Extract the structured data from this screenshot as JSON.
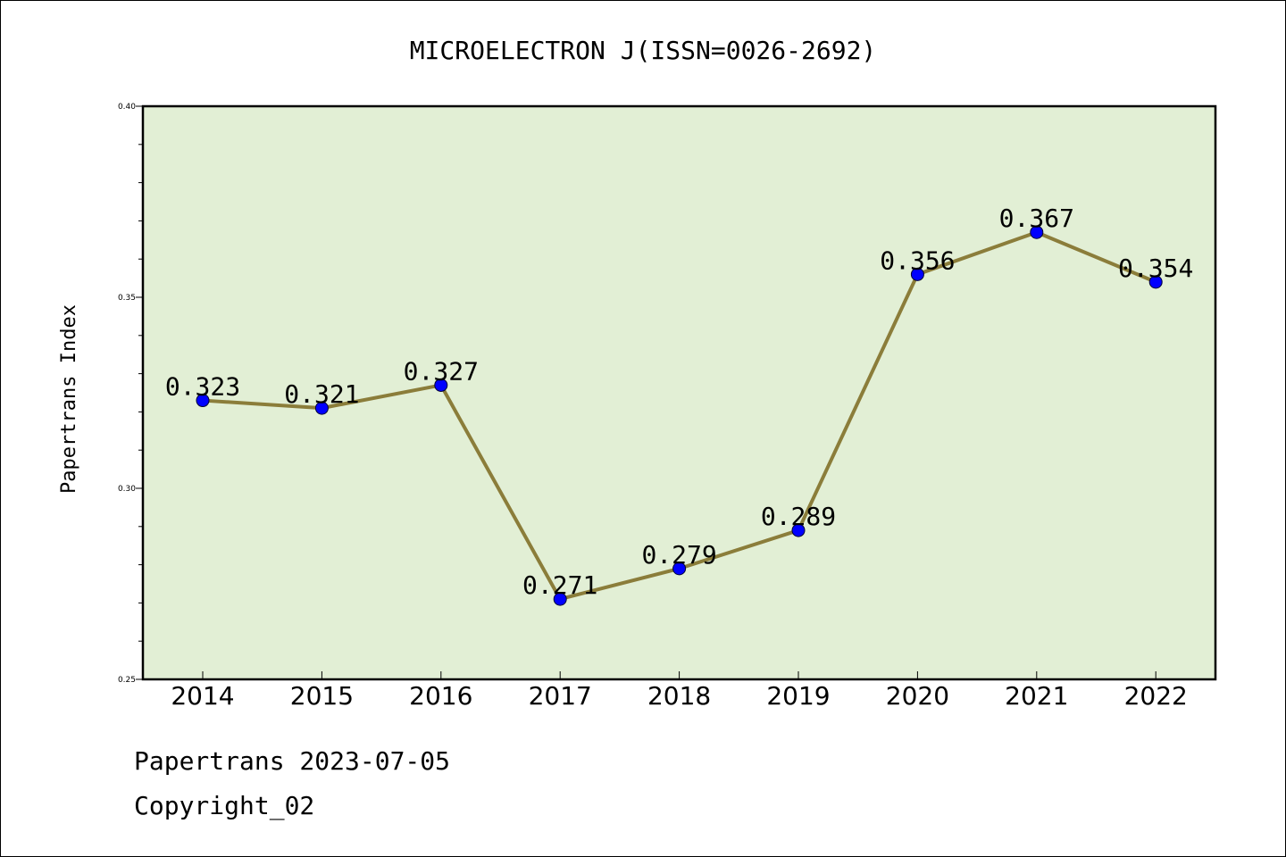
{
  "chart_data": {
    "type": "line",
    "title": "MICROELECTRON J(ISSN=0026-2692)",
    "xlabel": "",
    "ylabel": "Papertrans Index",
    "categories": [
      "2014",
      "2015",
      "2016",
      "2017",
      "2018",
      "2019",
      "2020",
      "2021",
      "2022"
    ],
    "values": [
      0.323,
      0.321,
      0.327,
      0.271,
      0.279,
      0.289,
      0.356,
      0.367,
      0.354
    ],
    "data_labels": [
      "0.323",
      "0.321",
      "0.327",
      "0.271",
      "0.279",
      "0.289",
      "0.356",
      "0.367",
      "0.354"
    ],
    "ylim": [
      0.25,
      0.4
    ],
    "yticks": [
      0.25,
      0.3,
      0.35,
      0.4
    ],
    "ytick_labels": [
      "0.25",
      "0.30",
      "0.35",
      "0.40"
    ],
    "yminor_step": 0.01,
    "grid": false,
    "legend": "none",
    "colors": {
      "line": "#8b7d3a",
      "marker": "#0000ff",
      "plot_background": "#e2efd5",
      "axes": "#000000"
    }
  },
  "footer": {
    "line1": "Papertrans 2023-07-05",
    "line2": "Copyright_02"
  }
}
